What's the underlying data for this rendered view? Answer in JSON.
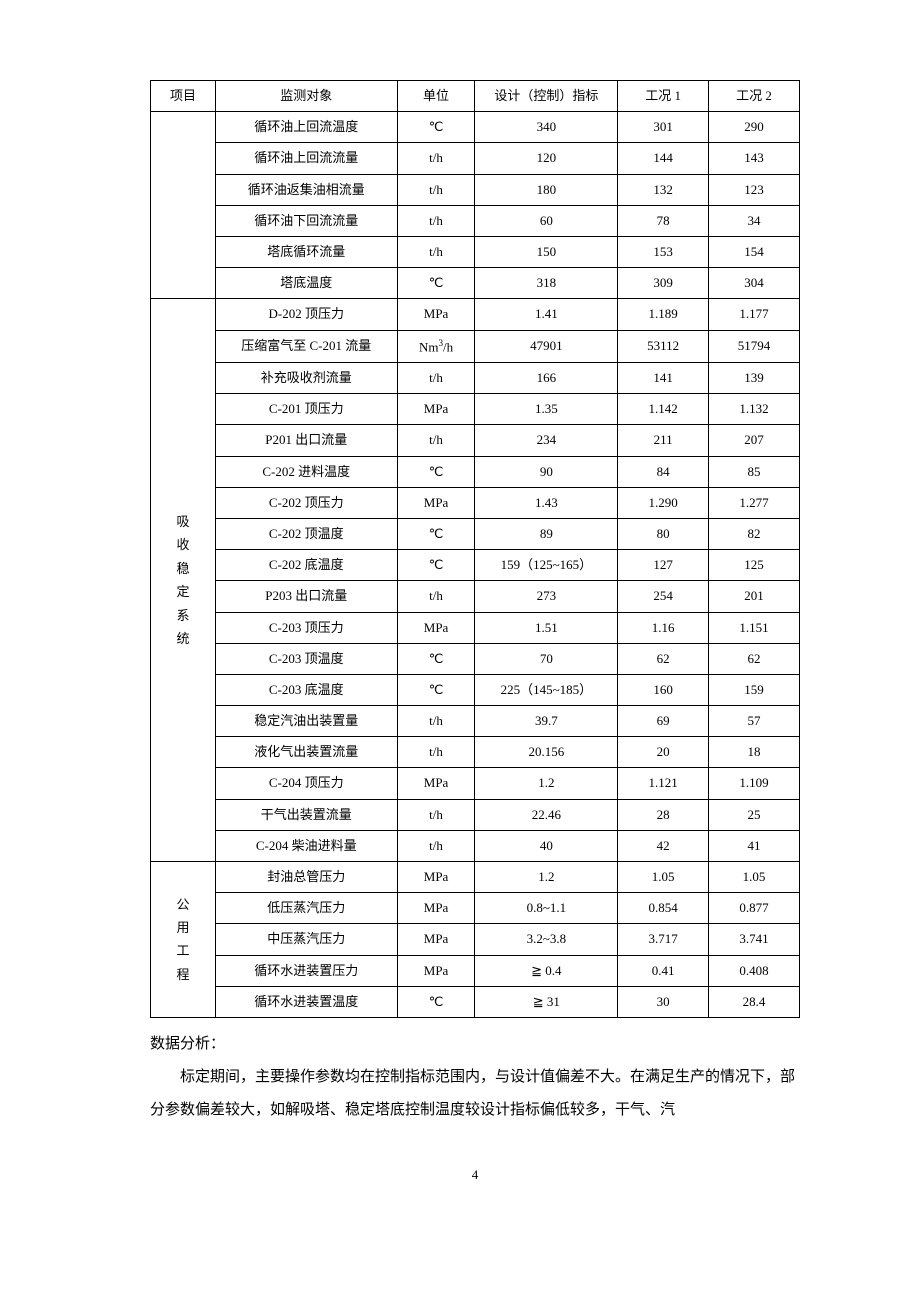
{
  "table": {
    "header": {
      "project": "项目",
      "monitor": "监测对象",
      "unit": "单位",
      "design": "设计（控制）指标",
      "c1": "工况 1",
      "c2": "工况 2"
    },
    "group1": {
      "label": "",
      "rows": [
        {
          "m": "循环油上回流温度",
          "u": "℃",
          "d": "340",
          "c1": "301",
          "c2": "290"
        },
        {
          "m": "循环油上回流流量",
          "u": "t/h",
          "d": "120",
          "c1": "144",
          "c2": "143"
        },
        {
          "m": "循环油返集油相流量",
          "u": "t/h",
          "d": "180",
          "c1": "132",
          "c2": "123"
        },
        {
          "m": "循环油下回流流量",
          "u": "t/h",
          "d": "60",
          "c1": "78",
          "c2": "34"
        },
        {
          "m": "塔底循环流量",
          "u": "t/h",
          "d": "150",
          "c1": "153",
          "c2": "154"
        },
        {
          "m": "塔底温度",
          "u": "℃",
          "d": "318",
          "c1": "309",
          "c2": "304"
        }
      ]
    },
    "group2": {
      "label_chars": [
        "吸",
        "收",
        "稳",
        "定",
        "系",
        "统"
      ],
      "rows": [
        {
          "m": "D-202 顶压力",
          "u": "MPa",
          "d": "1.41",
          "c1": "1.189",
          "c2": "1.177"
        },
        {
          "m": "压缩富气至   C-201 流量",
          "u": "Nm³/h",
          "d": "47901",
          "c1": "53112",
          "c2": "51794"
        },
        {
          "m": "补充吸收剂流量",
          "u": "t/h",
          "d": "166",
          "c1": "141",
          "c2": "139"
        },
        {
          "m": "C-201 顶压力",
          "u": "MPa",
          "d": "1.35",
          "c1": "1.142",
          "c2": "1.132"
        },
        {
          "m": "P201 出口流量",
          "u": "t/h",
          "d": "234",
          "c1": "211",
          "c2": "207"
        },
        {
          "m": "C-202 进料温度",
          "u": "℃",
          "d": "90",
          "c1": "84",
          "c2": "85"
        },
        {
          "m": "C-202 顶压力",
          "u": "MPa",
          "d": "1.43",
          "c1": "1.290",
          "c2": "1.277"
        },
        {
          "m": "C-202 顶温度",
          "u": "℃",
          "d": "89",
          "c1": "80",
          "c2": "82"
        },
        {
          "m": "C-202 底温度",
          "u": "℃",
          "d": "159（125~165）",
          "c1": "127",
          "c2": "125"
        },
        {
          "m": "P203 出口流量",
          "u": "t/h",
          "d": "273",
          "c1": "254",
          "c2": "201"
        },
        {
          "m": "C-203 顶压力",
          "u": "MPa",
          "d": "1.51",
          "c1": "1.16",
          "c2": "1.151"
        },
        {
          "m": "C-203 顶温度",
          "u": "℃",
          "d": "70",
          "c1": "62",
          "c2": "62"
        },
        {
          "m": "C-203 底温度",
          "u": "℃",
          "d": "225（145~185）",
          "c1": "160",
          "c2": "159"
        },
        {
          "m": "稳定汽油出装置量",
          "u": "t/h",
          "d": "39.7",
          "c1": "69",
          "c2": "57"
        },
        {
          "m": "液化气出装置流量",
          "u": "t/h",
          "d": "20.156",
          "c1": "20",
          "c2": "18"
        },
        {
          "m": "C-204 顶压力",
          "u": "MPa",
          "d": "1.2",
          "c1": "1.121",
          "c2": "1.109"
        },
        {
          "m": "干气出装置流量",
          "u": "t/h",
          "d": "22.46",
          "c1": "28",
          "c2": "25"
        },
        {
          "m": "C-204 柴油进料量",
          "u": "t/h",
          "d": "40",
          "c1": "42",
          "c2": "41"
        }
      ]
    },
    "group3": {
      "label_chars": [
        "公",
        "用",
        "工",
        "程"
      ],
      "rows": [
        {
          "m": "封油总管压力",
          "u": "MPa",
          "d": "1.2",
          "c1": "1.05",
          "c2": "1.05"
        },
        {
          "m": "低压蒸汽压力",
          "u": "MPa",
          "d": "0.8~1.1",
          "c1": "0.854",
          "c2": "0.877"
        },
        {
          "m": "中压蒸汽压力",
          "u": "MPa",
          "d": "3.2~3.8",
          "c1": "3.717",
          "c2": "3.741"
        },
        {
          "m": "循环水进装置压力",
          "u": "MPa",
          "d": "≧ 0.4",
          "c1": "0.41",
          "c2": "0.408"
        },
        {
          "m": "循环水进装置温度",
          "u": "℃",
          "d": "≧ 31",
          "c1": "30",
          "c2": "28.4"
        }
      ]
    }
  },
  "analysis": {
    "heading": "数据分析：",
    "body": "标定期间，主要操作参数均在控制指标范围内，与设计值偏差不大。在满足生产的情况下，部分参数偏差较大，如解吸塔、稳定塔底控制温度较设计指标偏低较多，干气、汽"
  },
  "page_number": "4"
}
